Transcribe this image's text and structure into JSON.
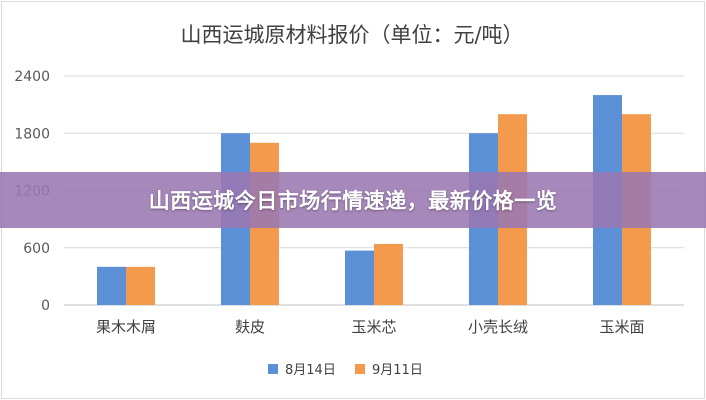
{
  "chart_data": {
    "type": "bar",
    "title": "山西运城原材料报价（单位：元/吨）",
    "categories": [
      "果木木屑",
      "麸皮",
      "玉米芯",
      "小壳长绒",
      "玉米面"
    ],
    "series": [
      {
        "name": "8月14日",
        "color": "#5b8fd6",
        "values": [
          400,
          1800,
          570,
          1800,
          2200
        ]
      },
      {
        "name": "9月11日",
        "color": "#f39a4c",
        "values": [
          400,
          1700,
          640,
          2000,
          2000
        ]
      }
    ],
    "yticks": [
      "0",
      "600",
      "1200",
      "1800",
      "2400"
    ],
    "ylim": [
      0,
      2400
    ],
    "grid": true,
    "legend": "bottom"
  },
  "banner": {
    "text": "山西运城今日市场行情速递，最新价格一览"
  }
}
